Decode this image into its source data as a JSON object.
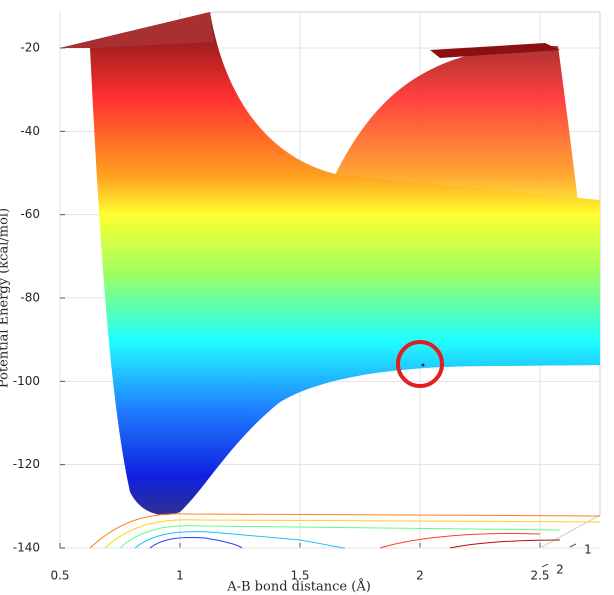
{
  "chart_data": {
    "type": "surface",
    "xlabel": "A-B bond distance (Å)",
    "zlabel": "Potential Energy (kcal/mol)",
    "xlim": [
      0.5,
      2.5
    ],
    "xticks": [
      0.5,
      1,
      1.5,
      2,
      2.5
    ],
    "zlim": [
      -140,
      -20
    ],
    "zticks": [
      -140,
      -120,
      -100,
      -80,
      -60,
      -40,
      -20
    ],
    "yticks": [
      1,
      2
    ],
    "grid": true
  }
}
